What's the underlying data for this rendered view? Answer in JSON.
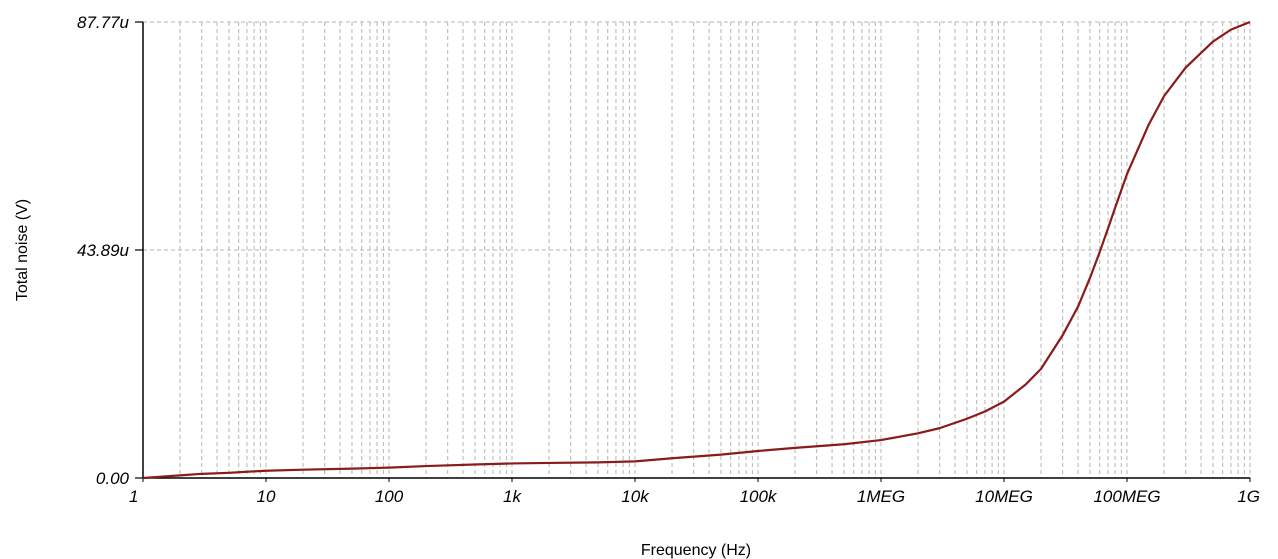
{
  "chart_data": {
    "type": "line",
    "xlabel": "Frequency (Hz)",
    "ylabel": "Total noise (V)",
    "x_scale": "log",
    "xlim": [
      1,
      1000000000
    ],
    "ylim": [
      0,
      87.77
    ],
    "y_unit": "u",
    "grid": true,
    "x_ticks": [
      {
        "value": 1,
        "label": "1"
      },
      {
        "value": 10,
        "label": "10"
      },
      {
        "value": 100,
        "label": "100"
      },
      {
        "value": 1000,
        "label": "1k"
      },
      {
        "value": 10000,
        "label": "10k"
      },
      {
        "value": 100000,
        "label": "100k"
      },
      {
        "value": 1000000,
        "label": "1MEG"
      },
      {
        "value": 10000000,
        "label": "10MEG"
      },
      {
        "value": 100000000,
        "label": "100MEG"
      },
      {
        "value": 1000000000,
        "label": "1G"
      }
    ],
    "y_ticks": [
      {
        "value": 0,
        "label": "0.00"
      },
      {
        "value": 43.89,
        "label": "43.89u"
      },
      {
        "value": 87.77,
        "label": "87.77u"
      }
    ],
    "line_color": "#8b1a1a",
    "series": [
      {
        "x": [
          1,
          1.5,
          2,
          3,
          5,
          7,
          10,
          20,
          50,
          100,
          200,
          500,
          1000,
          2000,
          5000,
          10000,
          20000,
          50000,
          100000,
          200000,
          500000,
          1000000,
          2000000,
          3000000,
          5000000,
          7000000,
          10000000,
          15000000,
          20000000,
          30000000,
          40000000,
          50000000,
          60000000,
          70000000,
          80000000,
          100000000,
          150000000,
          200000000,
          300000000,
          500000000,
          700000000,
          1000000000
        ],
        "y": [
          0.0,
          0.3,
          0.5,
          0.8,
          1.0,
          1.2,
          1.4,
          1.6,
          1.8,
          2.0,
          2.3,
          2.6,
          2.8,
          2.9,
          3.0,
          3.2,
          3.8,
          4.5,
          5.2,
          5.8,
          6.5,
          7.3,
          8.6,
          9.6,
          11.4,
          12.8,
          14.7,
          18.0,
          21.0,
          27.5,
          33.0,
          38.5,
          43.5,
          48.0,
          52.0,
          58.5,
          68.0,
          73.5,
          79.0,
          84.0,
          86.3,
          87.77
        ]
      }
    ]
  }
}
